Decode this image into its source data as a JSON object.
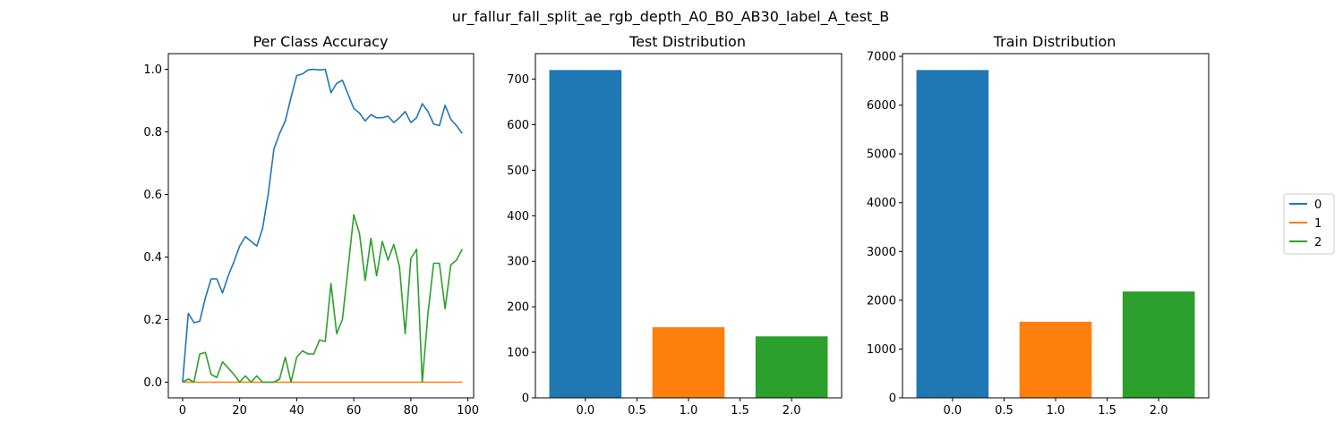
{
  "figure": {
    "suptitle": "ur_fallur_fall_split_ae_rgb_depth_A0_B0_AB30_label_A_test_B"
  },
  "legend": {
    "entries": [
      {
        "label": "0",
        "color": "#1f77b4"
      },
      {
        "label": "1",
        "color": "#ff7f0e"
      },
      {
        "label": "2",
        "color": "#2ca02c"
      }
    ],
    "placement": "right"
  },
  "chart_data": [
    {
      "type": "line",
      "title": "Per Class Accuracy",
      "xlabel": "",
      "ylabel": "",
      "xlim": [
        -5,
        102
      ],
      "ylim": [
        -0.05,
        1.05
      ],
      "xticks": [
        0,
        20,
        40,
        60,
        80,
        100
      ],
      "xtick_labels": [
        "0",
        "20",
        "40",
        "60",
        "80",
        "100"
      ],
      "yticks": [
        0.0,
        0.2,
        0.4,
        0.6,
        0.8,
        1.0
      ],
      "ytick_labels": [
        "0.0",
        "0.2",
        "0.4",
        "0.6",
        "0.8",
        "1.0"
      ],
      "x": [
        0,
        2,
        4,
        6,
        8,
        10,
        12,
        14,
        16,
        18,
        20,
        22,
        24,
        26,
        28,
        30,
        32,
        34,
        36,
        38,
        40,
        42,
        44,
        46,
        48,
        50,
        52,
        54,
        56,
        58,
        60,
        62,
        64,
        66,
        68,
        70,
        72,
        74,
        76,
        78,
        80,
        82,
        84,
        86,
        88,
        90,
        92,
        94,
        96,
        98
      ],
      "series": [
        {
          "name": "0",
          "color": "#1f77b4",
          "values": [
            0.0,
            0.22,
            0.19,
            0.195,
            0.27,
            0.33,
            0.33,
            0.285,
            0.34,
            0.385,
            0.435,
            0.465,
            0.45,
            0.435,
            0.49,
            0.6,
            0.745,
            0.795,
            0.835,
            0.91,
            0.98,
            0.985,
            0.998,
            1.0,
            0.998,
            1.0,
            0.925,
            0.955,
            0.965,
            0.92,
            0.875,
            0.86,
            0.835,
            0.855,
            0.845,
            0.845,
            0.85,
            0.83,
            0.845,
            0.865,
            0.83,
            0.845,
            0.89,
            0.865,
            0.825,
            0.82,
            0.885,
            0.84,
            0.82,
            0.795
          ]
        },
        {
          "name": "1",
          "color": "#ff7f0e",
          "values": [
            0,
            0,
            0,
            0,
            0,
            0,
            0,
            0,
            0,
            0,
            0,
            0,
            0,
            0,
            0,
            0,
            0,
            0,
            0,
            0,
            0,
            0,
            0,
            0,
            0,
            0,
            0,
            0,
            0,
            0,
            0,
            0,
            0,
            0,
            0,
            0,
            0,
            0,
            0,
            0,
            0,
            0,
            0,
            0,
            0,
            0,
            0,
            0,
            0,
            0
          ]
        },
        {
          "name": "2",
          "color": "#2ca02c",
          "values": [
            0.0,
            0.01,
            0.0,
            0.09,
            0.095,
            0.025,
            0.015,
            0.065,
            0.045,
            0.025,
            0.0,
            0.02,
            0.0,
            0.02,
            0.0,
            0.0,
            0.0,
            0.01,
            0.08,
            0.0,
            0.08,
            0.1,
            0.09,
            0.09,
            0.135,
            0.13,
            0.315,
            0.155,
            0.2,
            0.365,
            0.535,
            0.475,
            0.325,
            0.46,
            0.34,
            0.45,
            0.39,
            0.44,
            0.37,
            0.155,
            0.395,
            0.425,
            0.0,
            0.22,
            0.38,
            0.38,
            0.235,
            0.375,
            0.39,
            0.425
          ]
        }
      ]
    },
    {
      "type": "bar",
      "title": "Test Distribution",
      "xlabel": "",
      "ylabel": "",
      "x": [
        0.0,
        1.0,
        2.0
      ],
      "values": [
        720,
        155,
        135
      ],
      "colors": [
        "#1f77b4",
        "#ff7f0e",
        "#2ca02c"
      ],
      "bar_width": 0.7,
      "xlim": [
        -0.485,
        2.485
      ],
      "ylim": [
        0,
        756
      ],
      "xticks": [
        0.0,
        0.5,
        1.0,
        1.5,
        2.0
      ],
      "xtick_labels": [
        "0.0",
        "0.5",
        "1.0",
        "1.5",
        "2.0"
      ],
      "yticks": [
        0,
        100,
        200,
        300,
        400,
        500,
        600,
        700
      ],
      "ytick_labels": [
        "0",
        "100",
        "200",
        "300",
        "400",
        "500",
        "600",
        "700"
      ]
    },
    {
      "type": "bar",
      "title": "Train Distribution",
      "xlabel": "",
      "ylabel": "",
      "x": [
        0.0,
        1.0,
        2.0
      ],
      "values": [
        6720,
        1560,
        2180
      ],
      "colors": [
        "#1f77b4",
        "#ff7f0e",
        "#2ca02c"
      ],
      "bar_width": 0.7,
      "xlim": [
        -0.485,
        2.485
      ],
      "ylim": [
        0,
        7056
      ],
      "xticks": [
        0.0,
        0.5,
        1.0,
        1.5,
        2.0
      ],
      "xtick_labels": [
        "0.0",
        "0.5",
        "1.0",
        "1.5",
        "2.0"
      ],
      "yticks": [
        0,
        1000,
        2000,
        3000,
        4000,
        5000,
        6000,
        7000
      ],
      "ytick_labels": [
        "0",
        "1000",
        "2000",
        "3000",
        "4000",
        "5000",
        "6000",
        "7000"
      ]
    }
  ]
}
